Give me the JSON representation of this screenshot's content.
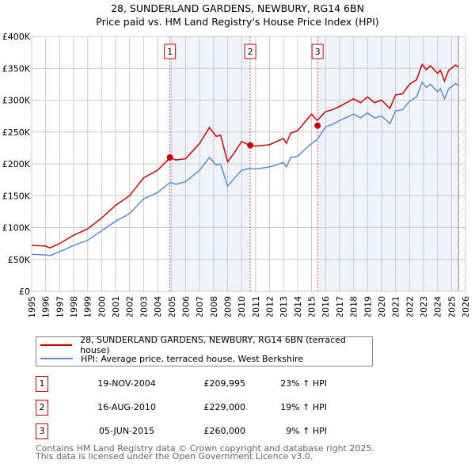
{
  "title": "28, SUNDERLAND GARDENS, NEWBURY, RG14 6BN",
  "subtitle": "Price paid vs. HM Land Registry's House Price Index (HPI)",
  "chart_data": {
    "type": "line",
    "xlim": [
      1995,
      2026
    ],
    "ylim": [
      0,
      400000
    ],
    "x_ticks": [
      "1995",
      "1996",
      "1997",
      "1998",
      "1999",
      "2000",
      "2001",
      "2002",
      "2003",
      "2004",
      "2005",
      "2006",
      "2007",
      "2008",
      "2009",
      "2010",
      "2011",
      "2012",
      "2013",
      "2014",
      "2015",
      "2016",
      "2017",
      "2018",
      "2019",
      "2020",
      "2021",
      "2022",
      "2023",
      "2024",
      "2025",
      "2026"
    ],
    "y_ticks": [
      {
        "v": 0,
        "label": "£0"
      },
      {
        "v": 50000,
        "label": "£50K"
      },
      {
        "v": 100000,
        "label": "£100K"
      },
      {
        "v": 150000,
        "label": "£150K"
      },
      {
        "v": 200000,
        "label": "£200K"
      },
      {
        "v": 250000,
        "label": "£250K"
      },
      {
        "v": 300000,
        "label": "£300K"
      },
      {
        "v": 350000,
        "label": "£350K"
      },
      {
        "v": 400000,
        "label": "£400K"
      }
    ],
    "grid": true,
    "x": [
      1995,
      1996,
      1996.3,
      1997,
      1998,
      1999,
      2000,
      2001,
      2002,
      2003,
      2004,
      2004.9,
      2005.3,
      2006,
      2007,
      2007.7,
      2008.2,
      2008.5,
      2009.0,
      2009.5,
      2010.0,
      2010.6,
      2011,
      2012,
      2013,
      2013.2,
      2013.5,
      2014,
      2015,
      2015.4,
      2016,
      2016.5,
      2017,
      2018,
      2018.5,
      2019,
      2019.5,
      2020,
      2020.6,
      2021,
      2021.5,
      2022,
      2022.5,
      2022.9,
      2023.2,
      2023.5,
      2024.0,
      2024.2,
      2024.5,
      2024.8,
      2025.3,
      2025.5
    ],
    "series": [
      {
        "name": "28, SUNDERLAND GARDENS, NEWBURY, RG14 6BN (terraced house)",
        "color": "#cc0000",
        "values": [
          72,
          71,
          68,
          75,
          88,
          98,
          115,
          135,
          150,
          178,
          190,
          210,
          206,
          208,
          232,
          257,
          243,
          245,
          203,
          218,
          235,
          229,
          228,
          230,
          240,
          232,
          248,
          252,
          278,
          268,
          282,
          285,
          290,
          302,
          296,
          305,
          296,
          300,
          287,
          308,
          310,
          325,
          332,
          356,
          348,
          354,
          342,
          347,
          330,
          347,
          355,
          352
        ]
      },
      {
        "name": "HPI: Average price, terraced house, West Berkshire",
        "color": "#5b8fd0",
        "values": [
          58,
          57,
          56,
          62,
          72,
          80,
          95,
          110,
          122,
          145,
          155,
          171,
          168,
          172,
          190,
          210,
          198,
          200,
          165,
          178,
          190,
          193,
          192,
          195,
          202,
          195,
          210,
          212,
          232,
          238,
          258,
          262,
          268,
          278,
          272,
          280,
          272,
          275,
          263,
          283,
          285,
          298,
          305,
          328,
          320,
          325,
          313,
          318,
          302,
          318,
          326,
          323
        ]
      }
    ],
    "value_unit": "£K",
    "sales": [
      {
        "n": "1",
        "x": 2004.88,
        "y": 209995
      },
      {
        "n": "2",
        "x": 2010.62,
        "y": 229000
      },
      {
        "n": "3",
        "x": 2015.43,
        "y": 260000
      }
    ],
    "shaded_ranges": [
      [
        2004.88,
        2010.62
      ],
      [
        2015.43,
        2025.5
      ]
    ],
    "projection_from": 2025.5,
    "legend_position": "below"
  },
  "sales_table": [
    {
      "n": "1",
      "date": "19-NOV-2004",
      "price": "£209,995",
      "hpi": "23% ↑ HPI"
    },
    {
      "n": "2",
      "date": "16-AUG-2010",
      "price": "£229,000",
      "hpi": "19% ↑ HPI"
    },
    {
      "n": "3",
      "date": "05-JUN-2015",
      "price": "£260,000",
      "hpi": "9% ↑ HPI"
    }
  ],
  "footer": [
    "Contains HM Land Registry data © Crown copyright and database right 2025.",
    "This data is licensed under the Open Government Licence v3.0."
  ]
}
